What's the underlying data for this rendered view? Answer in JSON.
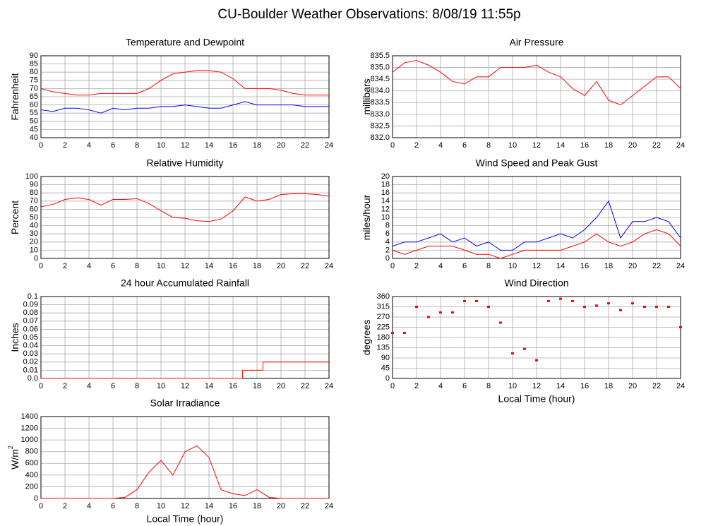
{
  "title": "CU-Boulder Weather Observations: 8/08/19 11:55p",
  "chart_data": [
    {
      "type": "line",
      "title": "Temperature and Dewpoint",
      "ylabel": "Fahrenheit",
      "x": [
        0,
        1,
        2,
        3,
        4,
        5,
        6,
        7,
        8,
        9,
        10,
        11,
        12,
        13,
        14,
        15,
        16,
        17,
        18,
        19,
        20,
        21,
        22,
        23,
        24
      ],
      "series": [
        {
          "color": "#ff0000",
          "values": [
            70,
            68,
            67,
            66,
            66,
            67,
            67,
            67,
            67,
            70,
            75,
            79,
            80,
            81,
            81,
            80,
            76,
            70,
            70,
            70,
            69,
            67,
            66,
            66,
            66
          ]
        },
        {
          "color": "#0000ff",
          "values": [
            57,
            56,
            58,
            58,
            57,
            55,
            58,
            57,
            58,
            58,
            59,
            59,
            60,
            59,
            58,
            58,
            60,
            62,
            60,
            60,
            60,
            60,
            59,
            59,
            59
          ]
        }
      ],
      "xlim": [
        0,
        24
      ],
      "xticks": [
        0,
        2,
        4,
        6,
        8,
        10,
        12,
        14,
        16,
        18,
        20,
        22,
        24
      ],
      "ylim": [
        40,
        90
      ],
      "yticks": [
        40,
        45,
        50,
        55,
        60,
        65,
        70,
        75,
        80,
        85,
        90
      ],
      "grid": true
    },
    {
      "type": "line",
      "title": "Air Pressure",
      "ylabel": "millibars",
      "x": [
        0,
        1,
        2,
        3,
        4,
        5,
        6,
        7,
        8,
        9,
        10,
        11,
        12,
        13,
        14,
        15,
        16,
        17,
        18,
        19,
        20,
        21,
        22,
        23,
        24
      ],
      "series": [
        {
          "color": "#ff0000",
          "values": [
            834.8,
            835.2,
            835.3,
            835.1,
            834.8,
            834.4,
            834.3,
            834.6,
            834.6,
            835.0,
            835.0,
            835.0,
            835.1,
            834.8,
            834.6,
            834.1,
            833.8,
            834.4,
            833.6,
            833.4,
            833.8,
            834.2,
            834.6,
            834.6,
            834.1
          ]
        }
      ],
      "xlim": [
        0,
        24
      ],
      "xticks": [
        0,
        2,
        4,
        6,
        8,
        10,
        12,
        14,
        16,
        18,
        20,
        22,
        24
      ],
      "ylim": [
        832,
        835.5
      ],
      "yticks": [
        {
          "value": 832,
          "label": "832.0"
        },
        832.5,
        {
          "value": 833,
          "label": "833.0"
        },
        833.5,
        {
          "value": 834,
          "label": "834.0"
        },
        834.5,
        {
          "value": 835,
          "label": "835.0"
        },
        835.5
      ],
      "grid": true
    },
    {
      "type": "line",
      "title": "Relative Humidity",
      "ylabel": "Percent",
      "x": [
        0,
        1,
        2,
        3,
        4,
        5,
        6,
        7,
        8,
        9,
        10,
        11,
        12,
        13,
        14,
        15,
        16,
        17,
        18,
        19,
        20,
        21,
        22,
        23,
        24
      ],
      "series": [
        {
          "color": "#ff0000",
          "values": [
            63,
            66,
            72,
            74,
            72,
            65,
            72,
            72,
            73,
            67,
            58,
            50,
            49,
            46,
            45,
            48,
            58,
            75,
            70,
            72,
            78,
            79,
            79,
            78,
            76
          ]
        }
      ],
      "xlim": [
        0,
        24
      ],
      "xticks": [
        0,
        2,
        4,
        6,
        8,
        10,
        12,
        14,
        16,
        18,
        20,
        22,
        24
      ],
      "ylim": [
        0,
        100
      ],
      "yticks": [
        0,
        10,
        20,
        30,
        40,
        50,
        60,
        70,
        80,
        90,
        100
      ],
      "grid": true
    },
    {
      "type": "line",
      "title": "Wind Speed and Peak Gust",
      "ylabel": "miles/hour",
      "x": [
        0,
        1,
        2,
        3,
        4,
        5,
        6,
        7,
        8,
        9,
        10,
        11,
        12,
        13,
        14,
        15,
        16,
        17,
        18,
        19,
        20,
        21,
        22,
        23,
        24
      ],
      "series": [
        {
          "color": "#0000ff",
          "values": [
            3,
            4,
            4,
            5,
            6,
            4,
            5,
            3,
            4,
            2,
            2,
            4,
            4,
            5,
            6,
            5,
            7,
            10,
            14,
            5,
            9,
            9,
            10,
            9,
            5
          ]
        },
        {
          "color": "#ff0000",
          "values": [
            2,
            1,
            2,
            3,
            3,
            3,
            2,
            1,
            1,
            0,
            1,
            2,
            2,
            2,
            2,
            3,
            4,
            6,
            4,
            3,
            4,
            6,
            7,
            6,
            3
          ]
        }
      ],
      "xlim": [
        0,
        24
      ],
      "xticks": [
        0,
        2,
        4,
        6,
        8,
        10,
        12,
        14,
        16,
        18,
        20,
        22,
        24
      ],
      "ylim": [
        0,
        20
      ],
      "yticks": [
        0,
        2,
        4,
        6,
        8,
        10,
        12,
        14,
        16,
        18,
        20
      ],
      "grid": true
    },
    {
      "type": "line",
      "title": "24 hour Accumulated Rainfall",
      "ylabel": "Inches",
      "x": [
        0,
        16.8,
        16.8,
        18.5,
        18.5,
        24
      ],
      "series": [
        {
          "color": "#ff0000",
          "values": [
            0,
            0,
            0.01,
            0.01,
            0.02,
            0.02
          ]
        }
      ],
      "xlim": [
        0,
        24
      ],
      "xticks": [
        0,
        2,
        4,
        6,
        8,
        10,
        12,
        14,
        16,
        18,
        20,
        22,
        24
      ],
      "ylim": [
        0,
        0.1
      ],
      "yticks": [
        {
          "value": 0,
          "label": "0.0"
        },
        0.01,
        0.02,
        0.03,
        0.04,
        0.05,
        0.06,
        0.07,
        0.08,
        0.09,
        0.1
      ],
      "grid": true
    },
    {
      "type": "scatter",
      "title": "Wind Direction",
      "ylabel": "degrees",
      "xlabel": "Local Time (hour)",
      "x": [
        0,
        1,
        2,
        3,
        4,
        5,
        6,
        7,
        8,
        9,
        10,
        11,
        12,
        13,
        14,
        15,
        16,
        17,
        18,
        19,
        20,
        21,
        22,
        23,
        24
      ],
      "series": [
        {
          "color": "#ff0000",
          "values": [
            200,
            200,
            315,
            270,
            290,
            290,
            340,
            340,
            315,
            245,
            110,
            130,
            80,
            340,
            350,
            340,
            315,
            320,
            330,
            300,
            330,
            315,
            315,
            315,
            225
          ]
        }
      ],
      "xlim": [
        0,
        24
      ],
      "xticks": [
        0,
        2,
        4,
        6,
        8,
        10,
        12,
        14,
        16,
        18,
        20,
        22,
        24
      ],
      "ylim": [
        0,
        360
      ],
      "yticks": [
        0,
        45,
        90,
        135,
        180,
        225,
        270,
        315,
        360
      ],
      "grid": true
    },
    {
      "type": "line",
      "title": "Solar Irradiance",
      "ylabel": "W/m",
      "ylabel_sup": "2",
      "xlabel": "Local Time (hour)",
      "x": [
        0,
        1,
        2,
        3,
        4,
        5,
        6,
        7,
        8,
        9,
        10,
        11,
        12,
        13,
        14,
        15,
        16,
        17,
        18,
        19,
        20,
        21,
        22,
        23,
        24
      ],
      "series": [
        {
          "color": "#ff0000",
          "values": [
            0,
            0,
            0,
            0,
            0,
            0,
            0,
            20,
            150,
            450,
            650,
            400,
            800,
            900,
            700,
            150,
            80,
            50,
            150,
            20,
            0,
            0,
            0,
            0,
            0
          ]
        }
      ],
      "xlim": [
        0,
        24
      ],
      "xticks": [
        0,
        2,
        4,
        6,
        8,
        10,
        12,
        14,
        16,
        18,
        20,
        22,
        24
      ],
      "ylim": [
        0,
        1400
      ],
      "yticks": [
        0,
        200,
        400,
        600,
        800,
        1000,
        1200,
        1400
      ],
      "grid": true
    }
  ]
}
